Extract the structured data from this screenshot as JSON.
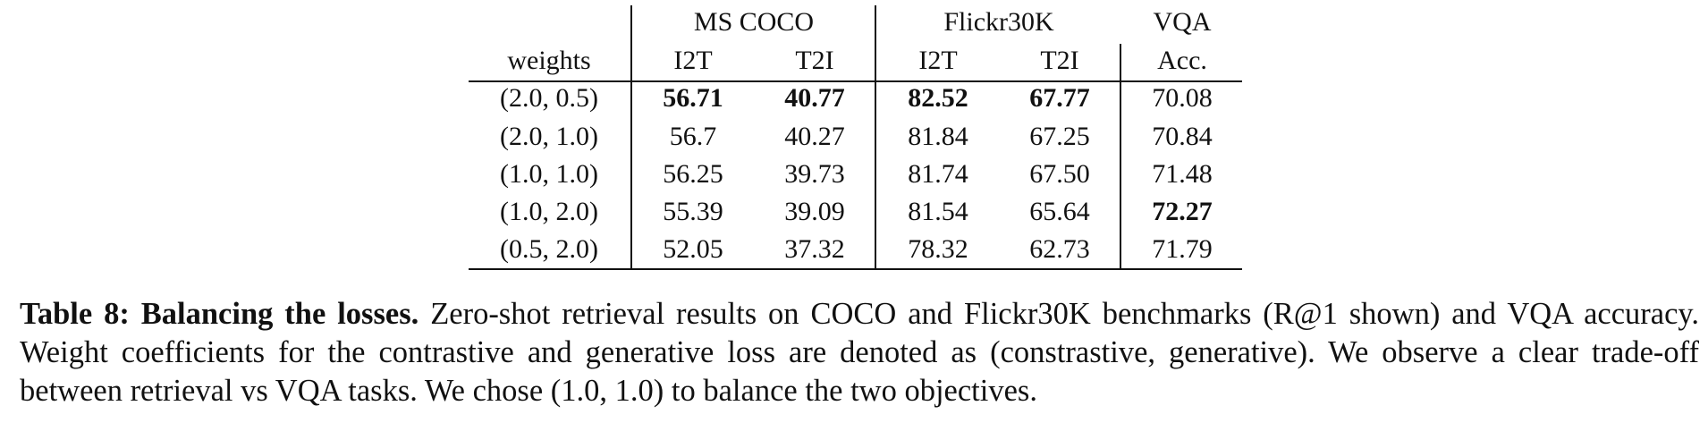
{
  "table": {
    "group_headers": [
      "MS COCO",
      "Flickr30K",
      "VQA"
    ],
    "column_headers": [
      "weights",
      "I2T",
      "T2I",
      "I2T",
      "T2I",
      "Acc."
    ],
    "rows": [
      [
        "(2.0, 0.5)",
        "56.71",
        "40.77",
        "82.52",
        "67.77",
        "70.08"
      ],
      [
        "(2.0, 1.0)",
        "56.7",
        "40.27",
        "81.84",
        "67.25",
        "70.84"
      ],
      [
        "(1.0, 1.0)",
        "56.25",
        "39.73",
        "81.74",
        "67.50",
        "71.48"
      ],
      [
        "(1.0, 2.0)",
        "55.39",
        "39.09",
        "81.54",
        "65.64",
        "72.27"
      ],
      [
        "(0.5, 2.0)",
        "52.05",
        "37.32",
        "78.32",
        "62.73",
        "71.79"
      ]
    ],
    "bold": [
      [
        0,
        1
      ],
      [
        0,
        2
      ],
      [
        0,
        3
      ],
      [
        0,
        4
      ],
      [
        3,
        5
      ]
    ]
  },
  "caption": {
    "label": "Table 8:",
    "title": "Balancing the losses.",
    "text": "Zero-shot retrieval results on COCO and Flickr30K benchmarks (R@1 shown) and VQA accuracy. Weight coefficients for the contrastive and generative loss are denoted as (constrastive, generative). We observe a clear trade-off between retrieval vs VQA tasks. We chose (1.0, 1.0) to balance the two objectives."
  }
}
